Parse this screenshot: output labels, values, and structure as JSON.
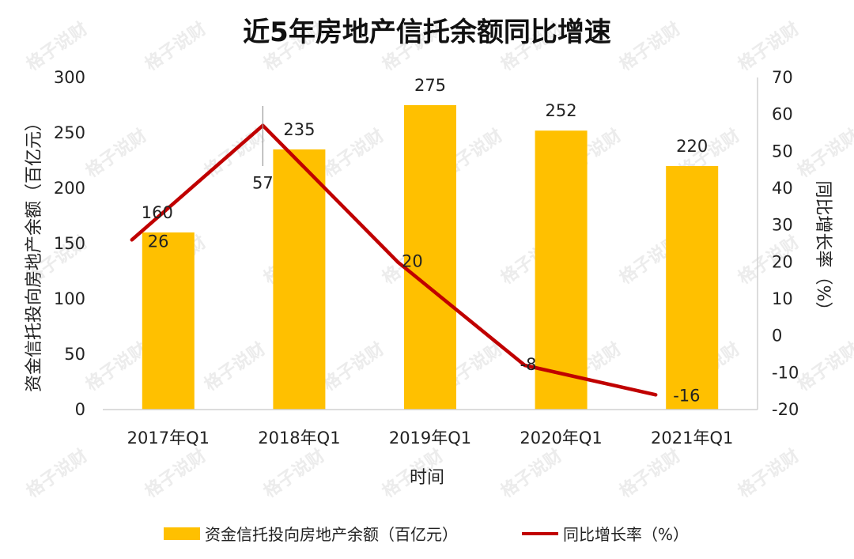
{
  "chart_data": {
    "type": "bar+line",
    "title": "近5年房地产信托余额同比增速",
    "watermark": "格子说财",
    "categories": [
      "2017年Q1",
      "2018年Q1",
      "2019年Q1",
      "2020年Q1",
      "2021年Q1"
    ],
    "series": [
      {
        "name": "资金信托投向房地产余额（百亿元）",
        "type": "bar",
        "axis": "left",
        "color": "#FFC000",
        "values": [
          160,
          235,
          275,
          252,
          220
        ]
      },
      {
        "name": "同比增长率（%）",
        "type": "line",
        "axis": "right",
        "color": "#C00000",
        "values": [
          26,
          57,
          20,
          -8,
          -16
        ]
      }
    ],
    "xlabel": "时间",
    "ylabel_left": "资金信托投向房地产余额（百亿元）",
    "ylabel_right": "同比增长率（%）",
    "ylim_left": [
      0,
      300
    ],
    "yticks_left": [
      0,
      50,
      100,
      150,
      200,
      250,
      300
    ],
    "ylim_right": [
      -20,
      70
    ],
    "yticks_right": [
      -20,
      -10,
      0,
      10,
      20,
      30,
      40,
      50,
      60,
      70
    ],
    "grid": false,
    "legend_position": "bottom"
  }
}
